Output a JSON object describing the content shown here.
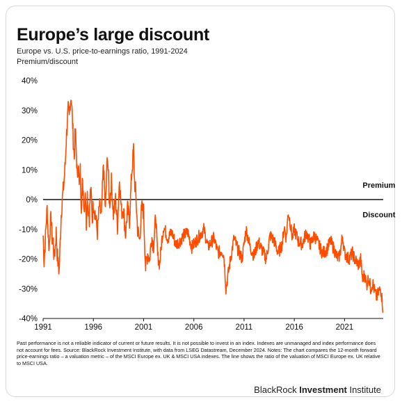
{
  "title": "Europe’s large discount",
  "subtitle": "Europe vs. U.S. price-to-earnings ratio, 1991-2024",
  "footnote": {
    "main": "Past performance is not a reliable indicator of current or future results. It is not possible to invest in an index. Indexes are unmanaged and index performance does not account for fees. Source: BlackRock Investment Institute, with data from LSEG Datastream, December 2024.",
    "notes": "Notes: The chart compares the 12-month forward price-earnings ratio – a valuation metric – of the MSCI Europe ex. UK & MSCI USA indexes. The line shows the ratio of the valuation of MSCI Europe ex. UK relative to MSCI USA."
  },
  "brand": {
    "part1": "BlackRock",
    "part2": "Investment",
    "part3": "Institute"
  },
  "colors": {
    "line": "#ff4d00",
    "axis": "#111111",
    "text": "#111111"
  },
  "chart_data": {
    "type": "line",
    "ylabel": "Premium/discount",
    "xlabel": "",
    "ylim": [
      -40,
      40
    ],
    "xlim": [
      1991,
      2024.85
    ],
    "y_ticks": [
      "40%",
      "30%",
      "20%",
      "10%",
      "0%",
      "-10%",
      "-20%",
      "-30%",
      "-40%"
    ],
    "y_tick_values": [
      40,
      30,
      20,
      10,
      0,
      -10,
      -20,
      -30,
      -40
    ],
    "x_ticks": [
      "1991",
      "1996",
      "2001",
      "2006",
      "2011",
      "2016",
      "2021"
    ],
    "x_tick_values": [
      1991,
      1996,
      2001,
      2006,
      2011,
      2016,
      2021
    ],
    "annotations": [
      {
        "text": "Premium",
        "x": 2022.8,
        "y": 4
      },
      {
        "text": "Discount",
        "x": 2022.8,
        "y": -6
      }
    ],
    "grid": false,
    "zero_line": true,
    "series": [
      {
        "x": [
          1991.0,
          1991.1,
          1991.2,
          1991.3,
          1991.4,
          1991.5,
          1991.6,
          1991.7,
          1991.8,
          1991.9,
          1992.0,
          1992.1,
          1992.2,
          1992.3,
          1992.4,
          1992.5,
          1992.6,
          1992.7,
          1992.8,
          1992.9,
          1993.0,
          1993.1,
          1993.2,
          1993.3,
          1993.4,
          1993.5,
          1993.6,
          1993.7,
          1993.8,
          1993.9,
          1994.0,
          1994.1,
          1994.2,
          1994.3,
          1994.4,
          1994.5,
          1994.6,
          1994.7,
          1994.8,
          1994.9,
          1995.0,
          1995.1,
          1995.2,
          1995.3,
          1995.4,
          1995.5,
          1995.6,
          1995.7,
          1995.8,
          1995.9,
          1996.0,
          1996.2,
          1996.4,
          1996.6,
          1996.8,
          1997.0,
          1997.2,
          1997.4,
          1997.6,
          1997.8,
          1998.0,
          1998.2,
          1998.4,
          1998.6,
          1998.8,
          1999.0,
          1999.2,
          1999.4,
          1999.6,
          1999.8,
          2000.0,
          2000.1,
          2000.2,
          2000.4,
          2000.6,
          2000.8,
          2001.0,
          2001.2,
          2001.4,
          2001.6,
          2001.8,
          2002.0,
          2002.2,
          2002.4,
          2002.6,
          2002.8,
          2003.0,
          2003.4,
          2003.8,
          2004.2,
          2004.6,
          2005.0,
          2005.4,
          2005.8,
          2006.2,
          2006.6,
          2007.0,
          2007.4,
          2007.8,
          2008.0,
          2008.4,
          2008.8,
          2009.0,
          2009.2,
          2009.6,
          2010.0,
          2010.4,
          2010.8,
          2011.2,
          2011.6,
          2012.0,
          2012.4,
          2012.8,
          2013.2,
          2013.6,
          2014.0,
          2014.4,
          2014.8,
          2015.0,
          2015.2,
          2015.4,
          2015.6,
          2015.8,
          2016.0,
          2016.4,
          2016.8,
          2017.2,
          2017.6,
          2018.0,
          2018.4,
          2018.8,
          2019.2,
          2019.6,
          2020.0,
          2020.2,
          2020.4,
          2020.6,
          2020.8,
          2021.0,
          2021.4,
          2021.8,
          2022.0,
          2022.2,
          2022.4,
          2022.6,
          2022.8,
          2023.0,
          2023.2,
          2023.4,
          2023.6,
          2023.8,
          2024.0,
          2024.2,
          2024.4,
          2024.6,
          2024.75,
          2024.85
        ],
        "values": [
          -12,
          -21,
          -15,
          -8,
          -3,
          -11,
          -17,
          -9,
          -6,
          -13,
          -14,
          -20,
          -16,
          -11,
          -18,
          -22,
          -24,
          -14,
          -5,
          0,
          3,
          7,
          12,
          20,
          26,
          30,
          27,
          33,
          35,
          28,
          20,
          14,
          24,
          16,
          7,
          13,
          4,
          10,
          -2,
          5,
          3,
          -4,
          4,
          -8,
          2,
          -3,
          -6,
          2,
          1,
          -7,
          -1,
          -5,
          -11,
          -2,
          -6,
          12,
          -4,
          16,
          -2,
          6,
          -5,
          0,
          -9,
          7,
          -4,
          -3,
          -12,
          -3,
          -7,
          8,
          17,
          6,
          3,
          -10,
          -14,
          -3,
          -4,
          -23,
          -18,
          -20,
          -12,
          -16,
          -5,
          -19,
          -22,
          -14,
          -9,
          -13,
          -11,
          -15,
          -14,
          -12,
          -11,
          -16,
          -14,
          -12,
          -10,
          -16,
          -14,
          -13,
          -18,
          -17,
          -19,
          -30,
          -21,
          -13,
          -17,
          -20,
          -10,
          -16,
          -19,
          -14,
          -17,
          -20,
          -12,
          -14,
          -18,
          -15,
          -9,
          -13,
          -4,
          -8,
          -13,
          -10,
          -14,
          -15,
          -11,
          -15,
          -12,
          -15,
          -18,
          -17,
          -14,
          -17,
          -19,
          -20,
          -17,
          -12,
          -18,
          -20,
          -18,
          -20,
          -21,
          -22,
          -20,
          -27,
          -25,
          -29,
          -26,
          -30,
          -28,
          -31,
          -33,
          -31,
          -30,
          -34,
          -38
        ]
      }
    ]
  }
}
